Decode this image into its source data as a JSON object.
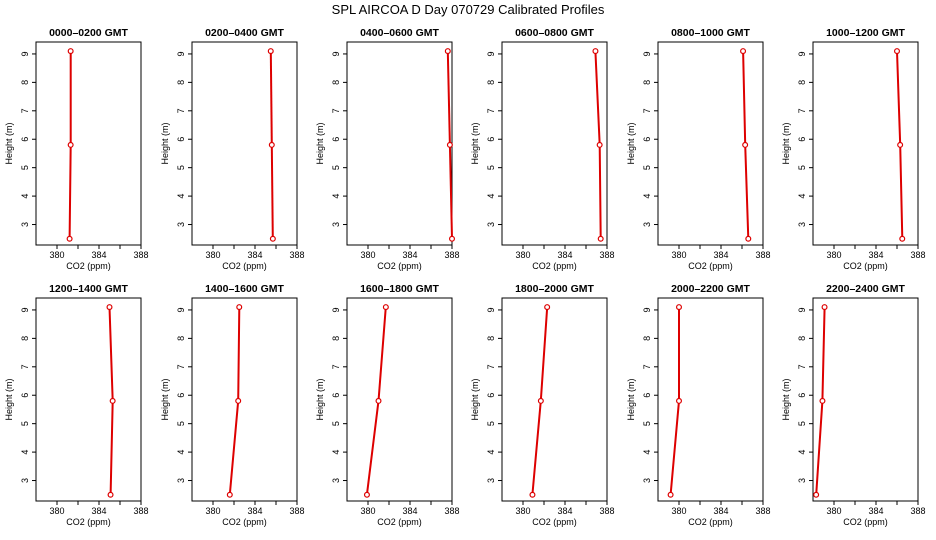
{
  "figure_title": "SPL AIRCOA D  Day 070729  Calibrated Profiles",
  "colors": {
    "profile": "#dd0000",
    "frame": "#000000",
    "background": "#ffffff"
  },
  "chart_data": [
    {
      "type": "line",
      "title": "0000–0200 GMT",
      "xlabel": "CO2 (ppm)",
      "ylabel": "Height (m)",
      "xlim": [
        378,
        388
      ],
      "ylim": [
        2.5,
        9.1
      ],
      "xticks": [
        "380",
        "384",
        "388"
      ],
      "yticks": [
        "3",
        "4",
        "5",
        "6",
        "7",
        "8",
        "9"
      ],
      "series": [
        {
          "x": [
            381.2,
            381.3,
            381.3
          ],
          "y": [
            2.5,
            5.8,
            9.1
          ]
        }
      ]
    },
    {
      "type": "line",
      "title": "0200–0400 GMT",
      "xlabel": "CO2 (ppm)",
      "ylabel": "Height (m)",
      "xlim": [
        378,
        388
      ],
      "ylim": [
        2.5,
        9.1
      ],
      "xticks": [
        "380",
        "384",
        "388"
      ],
      "yticks": [
        "3",
        "4",
        "5",
        "6",
        "7",
        "8",
        "9"
      ],
      "series": [
        {
          "x": [
            385.7,
            385.6,
            385.5
          ],
          "y": [
            2.5,
            5.8,
            9.1
          ]
        }
      ]
    },
    {
      "type": "line",
      "title": "0400–0600 GMT",
      "xlabel": "CO2 (ppm)",
      "ylabel": "Height (m)",
      "xlim": [
        378,
        388
      ],
      "ylim": [
        2.5,
        9.1
      ],
      "xticks": [
        "380",
        "384",
        "388"
      ],
      "yticks": [
        "3",
        "4",
        "5",
        "6",
        "7",
        "8",
        "9"
      ],
      "series": [
        {
          "x": [
            388.0,
            387.8,
            387.6
          ],
          "y": [
            2.5,
            5.8,
            9.1
          ]
        }
      ]
    },
    {
      "type": "line",
      "title": "0600–0800 GMT",
      "xlabel": "CO2 (ppm)",
      "ylabel": "Height (m)",
      "xlim": [
        378,
        388
      ],
      "ylim": [
        2.5,
        9.1
      ],
      "xticks": [
        "380",
        "384",
        "388"
      ],
      "yticks": [
        "3",
        "4",
        "5",
        "6",
        "7",
        "8",
        "9"
      ],
      "series": [
        {
          "x": [
            387.4,
            387.3,
            386.9
          ],
          "y": [
            2.5,
            5.8,
            9.1
          ]
        }
      ]
    },
    {
      "type": "line",
      "title": "0800–1000 GMT",
      "xlabel": "CO2 (ppm)",
      "ylabel": "Height (m)",
      "xlim": [
        378,
        388
      ],
      "ylim": [
        2.5,
        9.1
      ],
      "xticks": [
        "380",
        "384",
        "388"
      ],
      "yticks": [
        "3",
        "4",
        "5",
        "6",
        "7",
        "8",
        "9"
      ],
      "series": [
        {
          "x": [
            386.6,
            386.3,
            386.1
          ],
          "y": [
            2.5,
            5.8,
            9.1
          ]
        }
      ]
    },
    {
      "type": "line",
      "title": "1000–1200 GMT",
      "xlabel": "CO2 (ppm)",
      "ylabel": "Height (m)",
      "xlim": [
        378,
        388
      ],
      "ylim": [
        2.5,
        9.1
      ],
      "xticks": [
        "380",
        "384",
        "388"
      ],
      "yticks": [
        "3",
        "4",
        "5",
        "6",
        "7",
        "8",
        "9"
      ],
      "series": [
        {
          "x": [
            386.5,
            386.3,
            386.0
          ],
          "y": [
            2.5,
            5.8,
            9.1
          ]
        }
      ]
    },
    {
      "type": "line",
      "title": "1200–1400 GMT",
      "xlabel": "CO2 (ppm)",
      "ylabel": "Height (m)",
      "xlim": [
        378,
        388
      ],
      "ylim": [
        2.5,
        9.1
      ],
      "xticks": [
        "380",
        "384",
        "388"
      ],
      "yticks": [
        "3",
        "4",
        "5",
        "6",
        "7",
        "8",
        "9"
      ],
      "series": [
        {
          "x": [
            385.1,
            385.3,
            385.0
          ],
          "y": [
            2.5,
            5.8,
            9.1
          ]
        }
      ]
    },
    {
      "type": "line",
      "title": "1400–1600 GMT",
      "xlabel": "CO2 (ppm)",
      "ylabel": "Height (m)",
      "xlim": [
        378,
        388
      ],
      "ylim": [
        2.5,
        9.1
      ],
      "xticks": [
        "380",
        "384",
        "388"
      ],
      "yticks": [
        "3",
        "4",
        "5",
        "6",
        "7",
        "8",
        "9"
      ],
      "series": [
        {
          "x": [
            381.6,
            382.4,
            382.5
          ],
          "y": [
            2.5,
            5.8,
            9.1
          ]
        }
      ]
    },
    {
      "type": "line",
      "title": "1600–1800 GMT",
      "xlabel": "CO2 (ppm)",
      "ylabel": "Height (m)",
      "xlim": [
        378,
        388
      ],
      "ylim": [
        2.5,
        9.1
      ],
      "xticks": [
        "380",
        "384",
        "388"
      ],
      "yticks": [
        "3",
        "4",
        "5",
        "6",
        "7",
        "8",
        "9"
      ],
      "series": [
        {
          "x": [
            379.9,
            381.0,
            381.7
          ],
          "y": [
            2.5,
            5.8,
            9.1
          ]
        }
      ]
    },
    {
      "type": "line",
      "title": "1800–2000 GMT",
      "xlabel": "CO2 (ppm)",
      "ylabel": "Height (m)",
      "xlim": [
        378,
        388
      ],
      "ylim": [
        2.5,
        9.1
      ],
      "xticks": [
        "380",
        "384",
        "388"
      ],
      "yticks": [
        "3",
        "4",
        "5",
        "6",
        "7",
        "8",
        "9"
      ],
      "series": [
        {
          "x": [
            380.9,
            381.7,
            382.3
          ],
          "y": [
            2.5,
            5.8,
            9.1
          ]
        }
      ]
    },
    {
      "type": "line",
      "title": "2000–2200 GMT",
      "xlabel": "CO2 (ppm)",
      "ylabel": "Height (m)",
      "xlim": [
        378,
        388
      ],
      "ylim": [
        2.5,
        9.1
      ],
      "xticks": [
        "380",
        "384",
        "388"
      ],
      "yticks": [
        "3",
        "4",
        "5",
        "6",
        "7",
        "8",
        "9"
      ],
      "series": [
        {
          "x": [
            379.2,
            380.0,
            380.0
          ],
          "y": [
            2.5,
            5.8,
            9.1
          ]
        }
      ]
    },
    {
      "type": "line",
      "title": "2200–2400 GMT",
      "xlabel": "CO2 (ppm)",
      "ylabel": "Height (m)",
      "xlim": [
        378,
        388
      ],
      "ylim": [
        2.5,
        9.1
      ],
      "xticks": [
        "380",
        "384",
        "388"
      ],
      "yticks": [
        "3",
        "4",
        "5",
        "6",
        "7",
        "8",
        "9"
      ],
      "series": [
        {
          "x": [
            378.3,
            378.9,
            379.1
          ],
          "y": [
            2.5,
            5.8,
            9.1
          ]
        }
      ]
    }
  ]
}
